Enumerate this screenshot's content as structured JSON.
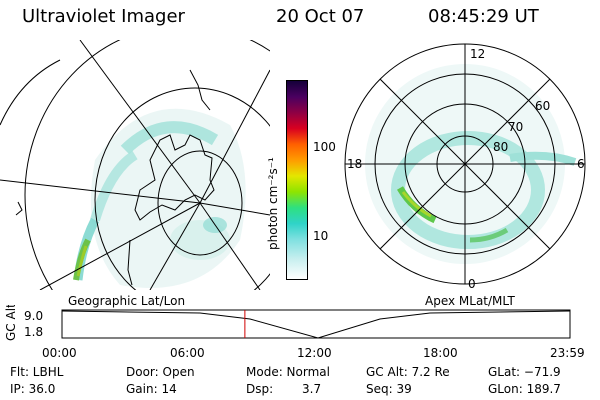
{
  "header": {
    "title": "Ultraviolet Imager",
    "date": "20 Oct 07",
    "time": "08:45:29 UT"
  },
  "colorbar": {
    "unit_label": "photon cm⁻²s⁻¹",
    "ticks": [
      "100",
      "10"
    ]
  },
  "polar": {
    "mlt_labels": [
      "12",
      "18",
      "6",
      "0"
    ],
    "lat_labels": [
      "60",
      "70",
      "80"
    ]
  },
  "panel_labels": {
    "left": "Geographic Lat/Lon",
    "right": "Apex MLat/MLT"
  },
  "altplot": {
    "ylabel": "GC Alt",
    "y_ticks": [
      "9.0",
      "1.8"
    ],
    "x_ticks": [
      "00:00",
      "06:00",
      "12:00",
      "18:00",
      "23:59"
    ],
    "current_time_fraction": 0.36
  },
  "info": {
    "flt": "Flt: LBHL",
    "ip": "IP: 36.0",
    "door": "Door: Open",
    "gain": "Gain: 14",
    "mode": "Mode: Normal",
    "dsp_label": "Dsp:",
    "dsp_value": "3.7",
    "gcalt": "GC Alt: 7.2 Re",
    "seq": "Seq: 39",
    "glat": "GLat: −71.9",
    "glon": "GLon: 189.7"
  }
}
